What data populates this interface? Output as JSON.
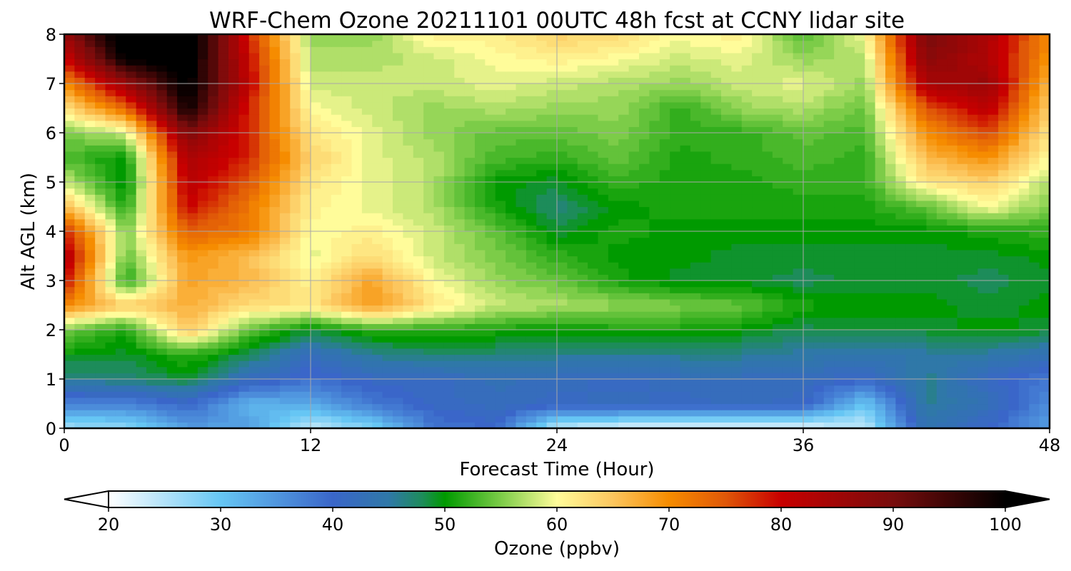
{
  "chart_data": {
    "type": "heatmap",
    "title": "WRF-Chem Ozone  20211101 00UTC 48h fcst at CCNY lidar site",
    "xlabel": "Forecast Time (Hour)",
    "ylabel": "Alt AGL (km)",
    "xlim": [
      0,
      48
    ],
    "ylim": [
      0,
      8
    ],
    "x_ticks": [
      0,
      12,
      24,
      36,
      48
    ],
    "y_ticks": [
      0,
      1,
      2,
      3,
      4,
      5,
      6,
      7,
      8
    ],
    "grid": true,
    "x": [
      0,
      3,
      6,
      9,
      12,
      15,
      18,
      21,
      24,
      27,
      30,
      33,
      36,
      39,
      42,
      45,
      48
    ],
    "y": [
      0,
      0.5,
      1,
      1.5,
      2,
      2.5,
      3,
      3.5,
      4,
      4.5,
      5,
      5.5,
      6,
      6.5,
      7,
      7.5,
      8
    ],
    "z": [
      [
        26,
        27,
        34,
        34,
        24,
        28,
        38,
        40,
        24,
        22,
        22,
        22,
        22,
        24,
        44,
        40,
        34
      ],
      [
        37,
        37,
        40,
        32,
        33,
        38,
        41,
        42,
        41,
        42,
        41,
        42,
        41,
        30,
        46,
        43,
        36
      ],
      [
        46,
        47,
        49,
        42,
        39,
        41,
        41,
        43,
        42,
        41,
        42,
        42,
        42,
        40,
        46,
        41,
        38
      ],
      [
        50,
        49,
        52,
        48,
        42,
        46,
        47,
        47,
        46,
        46,
        46,
        46,
        45,
        44,
        45,
        45,
        43
      ],
      [
        55,
        51,
        65,
        54,
        49,
        52,
        52,
        51,
        50,
        51,
        51,
        50,
        48,
        49,
        49,
        50,
        49
      ],
      [
        70,
        64,
        67,
        63,
        62,
        69,
        62,
        58,
        57,
        56,
        55,
        54,
        51,
        50,
        50,
        49,
        50
      ],
      [
        80,
        51,
        68,
        66,
        61,
        68,
        60,
        56,
        54,
        51,
        49,
        49,
        48,
        49,
        49,
        48,
        49
      ],
      [
        84,
        54,
        69,
        66,
        59,
        63,
        58,
        55,
        52,
        50,
        50,
        49,
        49,
        49,
        49,
        49,
        50
      ],
      [
        78,
        55,
        74,
        72,
        60,
        61,
        58,
        54,
        49,
        51,
        50,
        50,
        50,
        50,
        50,
        51,
        52
      ],
      [
        66,
        51,
        80,
        72,
        61,
        59,
        57,
        51,
        47,
        50,
        51,
        51,
        51,
        51,
        54,
        60,
        55
      ],
      [
        58,
        49,
        82,
        75,
        62,
        59,
        57,
        50,
        49,
        52,
        51,
        51,
        52,
        52,
        62,
        64,
        57
      ],
      [
        53,
        50,
        84,
        78,
        64,
        59,
        57,
        53,
        52,
        54,
        51,
        52,
        53,
        52,
        66,
        70,
        60
      ],
      [
        55,
        58,
        89,
        78,
        62,
        59,
        56,
        54,
        54,
        55,
        52,
        52,
        54,
        53,
        70,
        76,
        62
      ],
      [
        62,
        74,
        99,
        78,
        60,
        58,
        56,
        57,
        56,
        56,
        52,
        56,
        57,
        54,
        75,
        82,
        64
      ],
      [
        70,
        86,
        101,
        81,
        58,
        58,
        58,
        59,
        58,
        57,
        56,
        58,
        59,
        56,
        84,
        86,
        66
      ],
      [
        80,
        100,
        102,
        80,
        57,
        57,
        58,
        60,
        61,
        60,
        58,
        59,
        56,
        57,
        88,
        83,
        69
      ],
      [
        86,
        104,
        104,
        78,
        56,
        56,
        61,
        61,
        64,
        63,
        60,
        61,
        53,
        60,
        90,
        84,
        70
      ]
    ],
    "colorbar": {
      "label": "Ozone  (ppbv)",
      "min": 20,
      "max": 100,
      "ticks": [
        20,
        30,
        40,
        50,
        60,
        70,
        80,
        90,
        100
      ],
      "extend": "both",
      "color_stops": [
        {
          "value": 20,
          "color": "#ffffff"
        },
        {
          "value": 30,
          "color": "#66c6f4"
        },
        {
          "value": 40,
          "color": "#3a66c9"
        },
        {
          "value": 45,
          "color": "#2f78a8"
        },
        {
          "value": 48,
          "color": "#1d8c5a"
        },
        {
          "value": 50,
          "color": "#009a00"
        },
        {
          "value": 55,
          "color": "#7ccc48"
        },
        {
          "value": 60,
          "color": "#fffc9a"
        },
        {
          "value": 65,
          "color": "#fcc65e"
        },
        {
          "value": 70,
          "color": "#f68c00"
        },
        {
          "value": 75,
          "color": "#e05808"
        },
        {
          "value": 80,
          "color": "#c80000"
        },
        {
          "value": 90,
          "color": "#780c0c"
        },
        {
          "value": 100,
          "color": "#000000"
        }
      ]
    }
  }
}
